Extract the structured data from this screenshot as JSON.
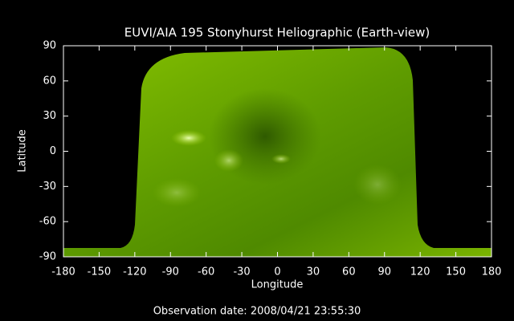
{
  "chart_data": {
    "type": "image",
    "title": "EUVI/AIA 195 Stonyhurst Heliographic (Earth-view)",
    "xlabel": "Longitude",
    "ylabel": "Latitude",
    "annotation": "Observation date: 2008/04/21 23:55:30",
    "xlim": [
      -180,
      180
    ],
    "ylim": [
      -90,
      90
    ],
    "xticks": [
      -180,
      -150,
      -120,
      -90,
      -60,
      -30,
      0,
      30,
      60,
      90,
      120,
      150,
      180
    ],
    "yticks": [
      -90,
      -60,
      -30,
      0,
      30,
      60,
      90
    ],
    "grid": false
  }
}
